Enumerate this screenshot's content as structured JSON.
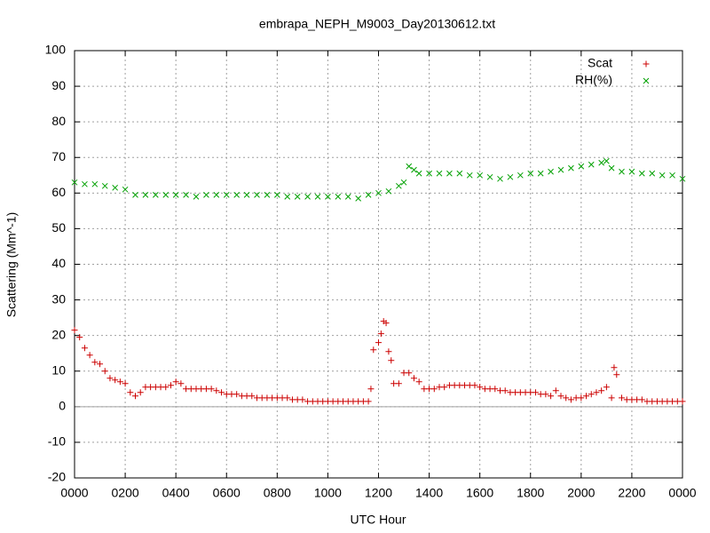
{
  "chart_data": {
    "type": "scatter",
    "title": "embrapa_NEPH_M9003_Day20130612.txt",
    "x_label": "UTC Hour",
    "y_label": "Scattering (Mm^-1)",
    "xlim": [
      0,
      24
    ],
    "ylim": [
      -20,
      100
    ],
    "xticks": [
      {
        "value": 0,
        "label": "0000"
      },
      {
        "value": 2,
        "label": "0200"
      },
      {
        "value": 4,
        "label": "0400"
      },
      {
        "value": 6,
        "label": "0600"
      },
      {
        "value": 8,
        "label": "0800"
      },
      {
        "value": 10,
        "label": "1000"
      },
      {
        "value": 12,
        "label": "1200"
      },
      {
        "value": 14,
        "label": "1400"
      },
      {
        "value": 16,
        "label": "1600"
      },
      {
        "value": 18,
        "label": "1800"
      },
      {
        "value": 20,
        "label": "2000"
      },
      {
        "value": 22,
        "label": "2200"
      },
      {
        "value": 24,
        "label": "0000"
      }
    ],
    "yticks": [
      -20,
      -10,
      0,
      10,
      20,
      30,
      40,
      50,
      60,
      70,
      80,
      90,
      100
    ],
    "grid": true,
    "legend": "top-right",
    "series": [
      {
        "name": "Scat",
        "color": "#cc0000",
        "marker": "+",
        "x": [
          0.0,
          0.2,
          0.4,
          0.6,
          0.8,
          1.0,
          1.2,
          1.4,
          1.6,
          1.8,
          2.0,
          2.2,
          2.4,
          2.6,
          2.8,
          3.0,
          3.2,
          3.4,
          3.6,
          3.8,
          4.0,
          4.2,
          4.4,
          4.6,
          4.8,
          5.0,
          5.2,
          5.4,
          5.6,
          5.8,
          6.0,
          6.2,
          6.4,
          6.6,
          6.8,
          7.0,
          7.2,
          7.4,
          7.6,
          7.8,
          8.0,
          8.2,
          8.4,
          8.6,
          8.8,
          9.0,
          9.2,
          9.4,
          9.6,
          9.8,
          10.0,
          10.2,
          10.4,
          10.6,
          10.8,
          11.0,
          11.2,
          11.4,
          11.6,
          11.7,
          11.8,
          12.0,
          12.1,
          12.2,
          12.3,
          12.4,
          12.5,
          12.6,
          12.8,
          13.0,
          13.2,
          13.4,
          13.6,
          13.8,
          14.0,
          14.2,
          14.4,
          14.6,
          14.8,
          15.0,
          15.2,
          15.4,
          15.6,
          15.8,
          16.0,
          16.2,
          16.4,
          16.6,
          16.8,
          17.0,
          17.2,
          17.4,
          17.6,
          17.8,
          18.0,
          18.2,
          18.4,
          18.6,
          18.8,
          19.0,
          19.2,
          19.4,
          19.6,
          19.8,
          20.0,
          20.2,
          20.4,
          20.6,
          20.8,
          21.0,
          21.2,
          21.3,
          21.4,
          21.6,
          21.8,
          22.0,
          22.2,
          22.4,
          22.6,
          22.8,
          23.0,
          23.2,
          23.4,
          23.6,
          23.8,
          24.0
        ],
        "values": [
          21.5,
          19.5,
          16.5,
          14.5,
          12.5,
          12,
          10,
          8,
          7.5,
          7,
          6.5,
          4,
          3,
          4,
          5.5,
          5.5,
          5.5,
          5.5,
          5.5,
          6,
          7,
          6.5,
          5,
          5,
          5,
          5,
          5,
          5,
          4.5,
          4,
          3.5,
          3.5,
          3.5,
          3,
          3,
          3,
          2.5,
          2.5,
          2.5,
          2.5,
          2.5,
          2.5,
          2.5,
          2,
          2,
          2,
          1.5,
          1.5,
          1.5,
          1.5,
          1.5,
          1.5,
          1.5,
          1.5,
          1.5,
          1.5,
          1.5,
          1.5,
          1.5,
          5,
          16,
          18,
          20.5,
          24,
          23.5,
          15.5,
          13,
          6.5,
          6.5,
          9.5,
          9.5,
          8,
          7,
          5,
          5,
          5,
          5.5,
          5.5,
          6,
          6,
          6,
          6,
          6,
          6,
          5.5,
          5,
          5,
          5,
          4.5,
          4.5,
          4,
          4,
          4,
          4,
          4,
          4,
          3.5,
          3.5,
          3,
          4.5,
          3,
          2.5,
          2,
          2.5,
          2.5,
          3,
          3.5,
          4,
          4.5,
          5.5,
          2.5,
          11,
          9,
          2.5,
          2,
          2,
          2,
          2,
          1.5,
          1.5,
          1.5,
          1.5,
          1.5,
          1.5,
          1.5,
          1.5
        ]
      },
      {
        "name": "RH(%)",
        "color": "#00a000",
        "marker": "x",
        "x": [
          0,
          0.4,
          0.8,
          1.2,
          1.6,
          2.0,
          2.4,
          2.8,
          3.2,
          3.6,
          4.0,
          4.4,
          4.8,
          5.2,
          5.6,
          6.0,
          6.4,
          6.8,
          7.2,
          7.6,
          8.0,
          8.4,
          8.8,
          9.2,
          9.6,
          10.0,
          10.4,
          10.8,
          11.2,
          11.6,
          12.0,
          12.4,
          12.8,
          13.0,
          13.2,
          13.4,
          13.6,
          14.0,
          14.4,
          14.8,
          15.2,
          15.6,
          16.0,
          16.4,
          16.8,
          17.2,
          17.6,
          18.0,
          18.4,
          18.8,
          19.2,
          19.6,
          20.0,
          20.4,
          20.8,
          21.0,
          21.2,
          21.6,
          22.0,
          22.4,
          22.8,
          23.2,
          23.6,
          24.0
        ],
        "values": [
          63,
          62.5,
          62.5,
          62,
          61.5,
          61,
          59.5,
          59.5,
          59.5,
          59.5,
          59.5,
          59.5,
          59,
          59.5,
          59.5,
          59.5,
          59.5,
          59.5,
          59.5,
          59.5,
          59.5,
          59,
          59,
          59,
          59,
          59,
          59,
          59,
          58.5,
          59.5,
          60,
          60.5,
          62,
          63,
          67.5,
          66.5,
          65.5,
          65.5,
          65.5,
          65.5,
          65.5,
          65,
          65,
          64.5,
          64,
          64.5,
          65,
          65.5,
          65.5,
          66,
          66.5,
          67,
          67.5,
          68,
          68.5,
          69,
          67,
          66,
          66,
          65.5,
          65.5,
          65,
          65,
          64
        ]
      }
    ]
  }
}
